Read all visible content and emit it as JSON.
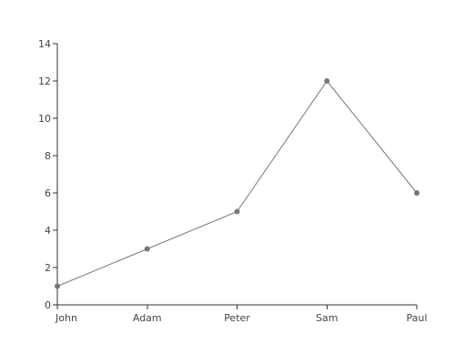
{
  "chart_data": {
    "type": "line",
    "categories": [
      "John",
      "Adam",
      "Peter",
      "Sam",
      "Paul"
    ],
    "series": [
      {
        "values": [
          1,
          3,
          5,
          12,
          6
        ],
        "color": "#777777"
      }
    ],
    "ylim": [
      0,
      14
    ],
    "yticks": [
      "0",
      "2",
      "4",
      "6",
      "8",
      "10",
      "12",
      "14"
    ],
    "grid": false,
    "legend": "none",
    "axis_color": "#333333",
    "label_color": "#444444"
  }
}
